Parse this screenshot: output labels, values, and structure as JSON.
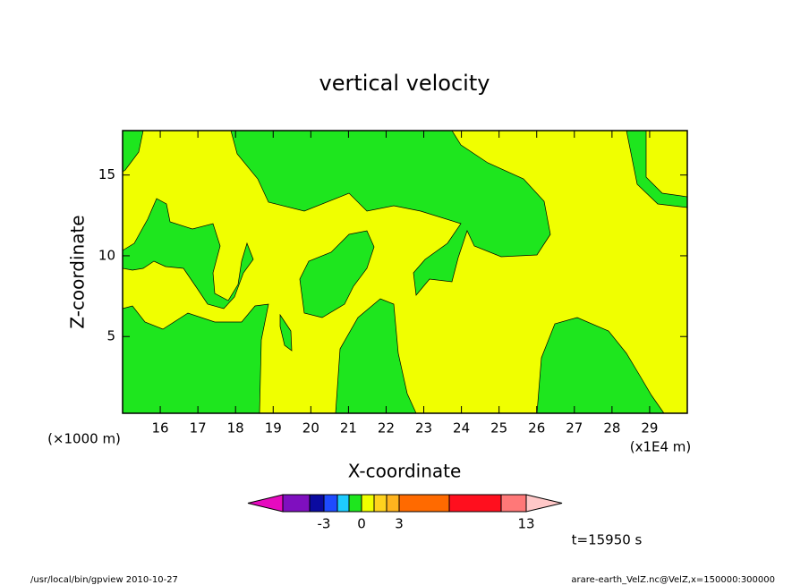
{
  "chart_data": {
    "type": "contour",
    "title": "vertical velocity",
    "x_label": "X-coordinate",
    "y_label": "Z-coordinate",
    "x_unit": "(x1E4 m)",
    "y_unit": "(×1000 m)",
    "time_label": "t=15950 s",
    "footer_left": "/usr/local/bin/gpview   2010-10-27",
    "footer_right": "arare-earth_VelZ.nc@VelZ,x=150000:300000",
    "xlim": [
      15,
      30
    ],
    "xticks": [
      16,
      17,
      18,
      19,
      20,
      21,
      22,
      23,
      24,
      25,
      26,
      27,
      28,
      29
    ],
    "ylim": [
      0.25,
      17.75
    ],
    "yticks": [
      5,
      10,
      15
    ],
    "colorbar": {
      "colors": [
        "#e60abf",
        "#7f0fbf",
        "#0a0aa0",
        "#1e4bff",
        "#1ecbff",
        "#1ee61e",
        "#f0ff00",
        "#ffd21e",
        "#ffb41e",
        "#ff6a00",
        "#ff0f1e",
        "#ff7878",
        "#ffc8c8"
      ],
      "ticks": [
        -3,
        0,
        3,
        13
      ]
    }
  }
}
